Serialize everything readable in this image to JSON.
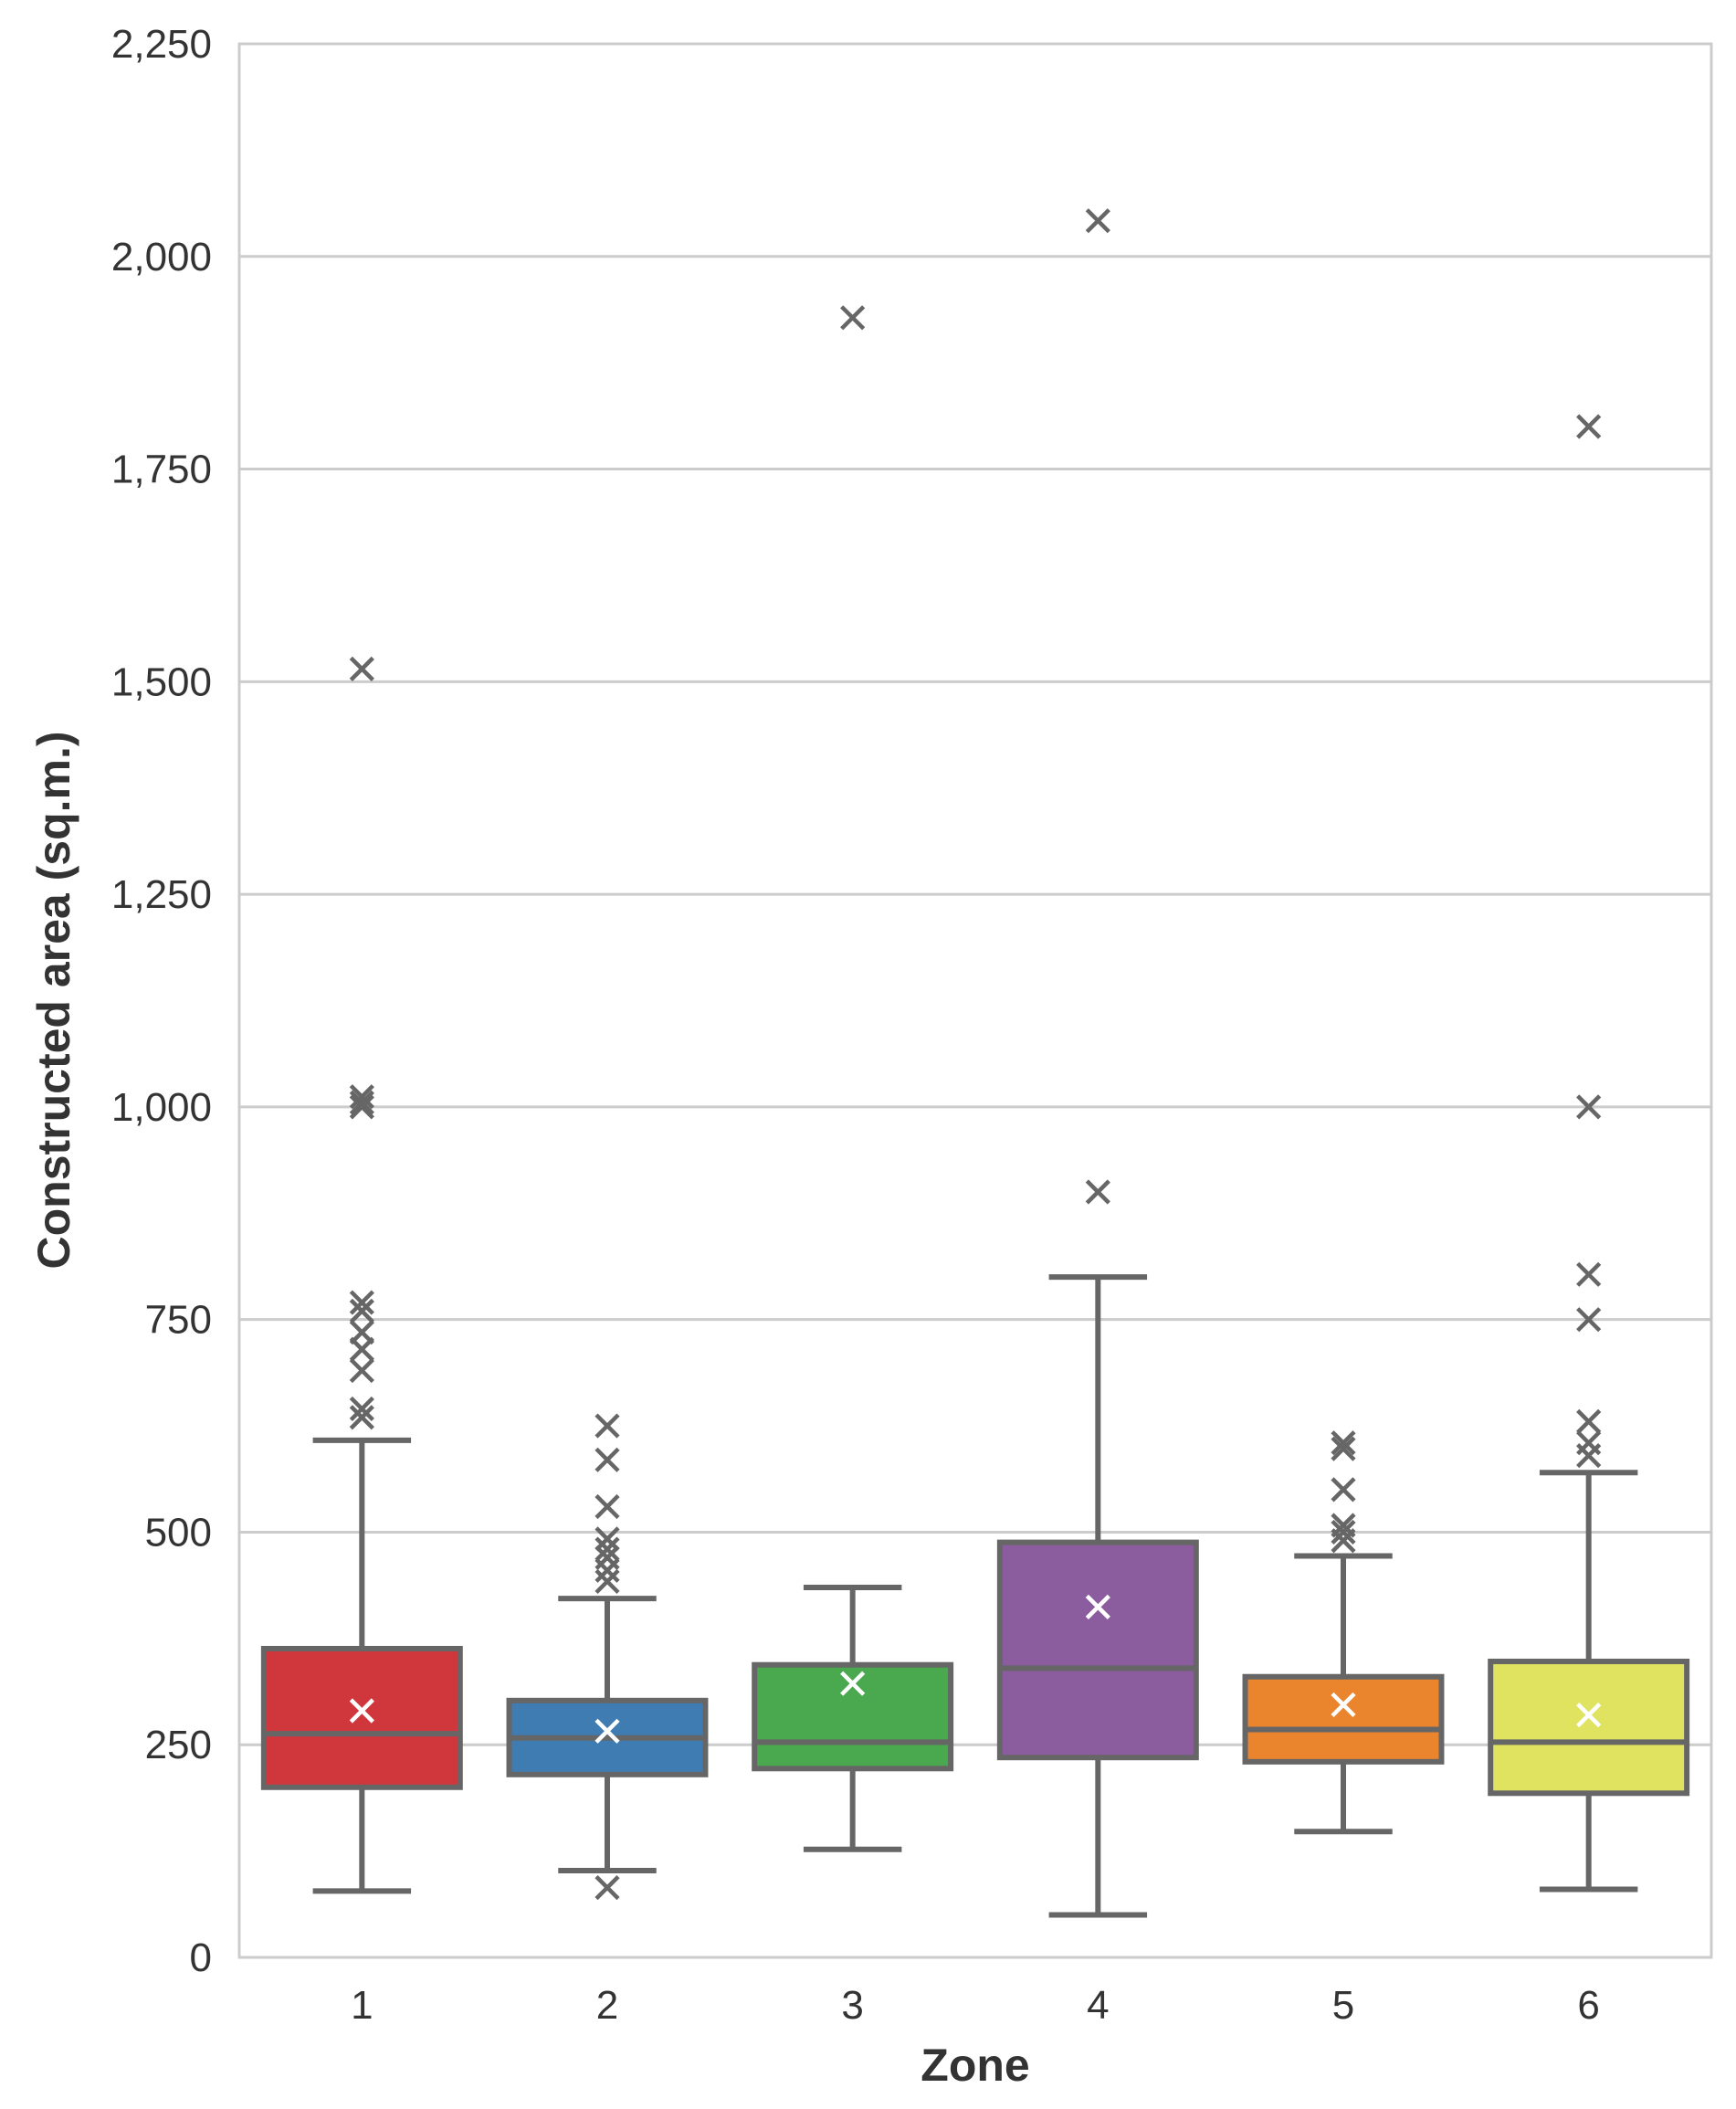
{
  "chart_data": {
    "type": "box",
    "xlabel": "Zone",
    "ylabel": "Constructed area (sq.m.)",
    "ylim": [
      0,
      2250
    ],
    "yticks": [
      0,
      250,
      500,
      750,
      1000,
      1250,
      1500,
      1750,
      2000,
      2250
    ],
    "ytick_labels": [
      "0",
      "250",
      "500",
      "750",
      "1,000",
      "1,250",
      "1,500",
      "1,750",
      "2,000",
      "2,250"
    ],
    "grid": true,
    "categories": [
      "1",
      "2",
      "3",
      "4",
      "5",
      "6"
    ],
    "boxes": [
      {
        "zone": "1",
        "color": "#d0373c",
        "whisker_low": 78,
        "q1": 200,
        "median": 263,
        "q3": 363,
        "whisker_high": 608,
        "mean": 290,
        "outliers": [
          635,
          645,
          690,
          715,
          735,
          760,
          770,
          1000,
          1005,
          1012,
          1515
        ]
      },
      {
        "zone": "2",
        "color": "#3f7cb2",
        "whisker_low": 102,
        "q1": 215,
        "median": 258,
        "q3": 302,
        "whisker_high": 422,
        "mean": 266,
        "outliers": [
          82,
          442,
          455,
          470,
          480,
          492,
          530,
          585,
          625
        ]
      },
      {
        "zone": "3",
        "color": "#4aa84e",
        "whisker_low": 127,
        "q1": 222,
        "median": 253,
        "q3": 344,
        "whisker_high": 435,
        "mean": 322,
        "outliers": [
          1928
        ]
      },
      {
        "zone": "4",
        "color": "#8b5d9f",
        "whisker_low": 50,
        "q1": 235,
        "median": 340,
        "q3": 488,
        "whisker_high": 800,
        "mean": 412,
        "outliers": [
          900,
          2042
        ]
      },
      {
        "zone": "5",
        "color": "#ea842d",
        "whisker_low": 148,
        "q1": 230,
        "median": 268,
        "q3": 330,
        "whisker_high": 472,
        "mean": 297,
        "outliers": [
          490,
          500,
          508,
          550,
          598,
          605
        ]
      },
      {
        "zone": "6",
        "color": "#dfe35f",
        "whisker_low": 80,
        "q1": 193,
        "median": 253,
        "q3": 348,
        "whisker_high": 570,
        "mean": 285,
        "outliers": [
          590,
          605,
          630,
          750,
          803,
          1000,
          1800
        ]
      }
    ]
  }
}
